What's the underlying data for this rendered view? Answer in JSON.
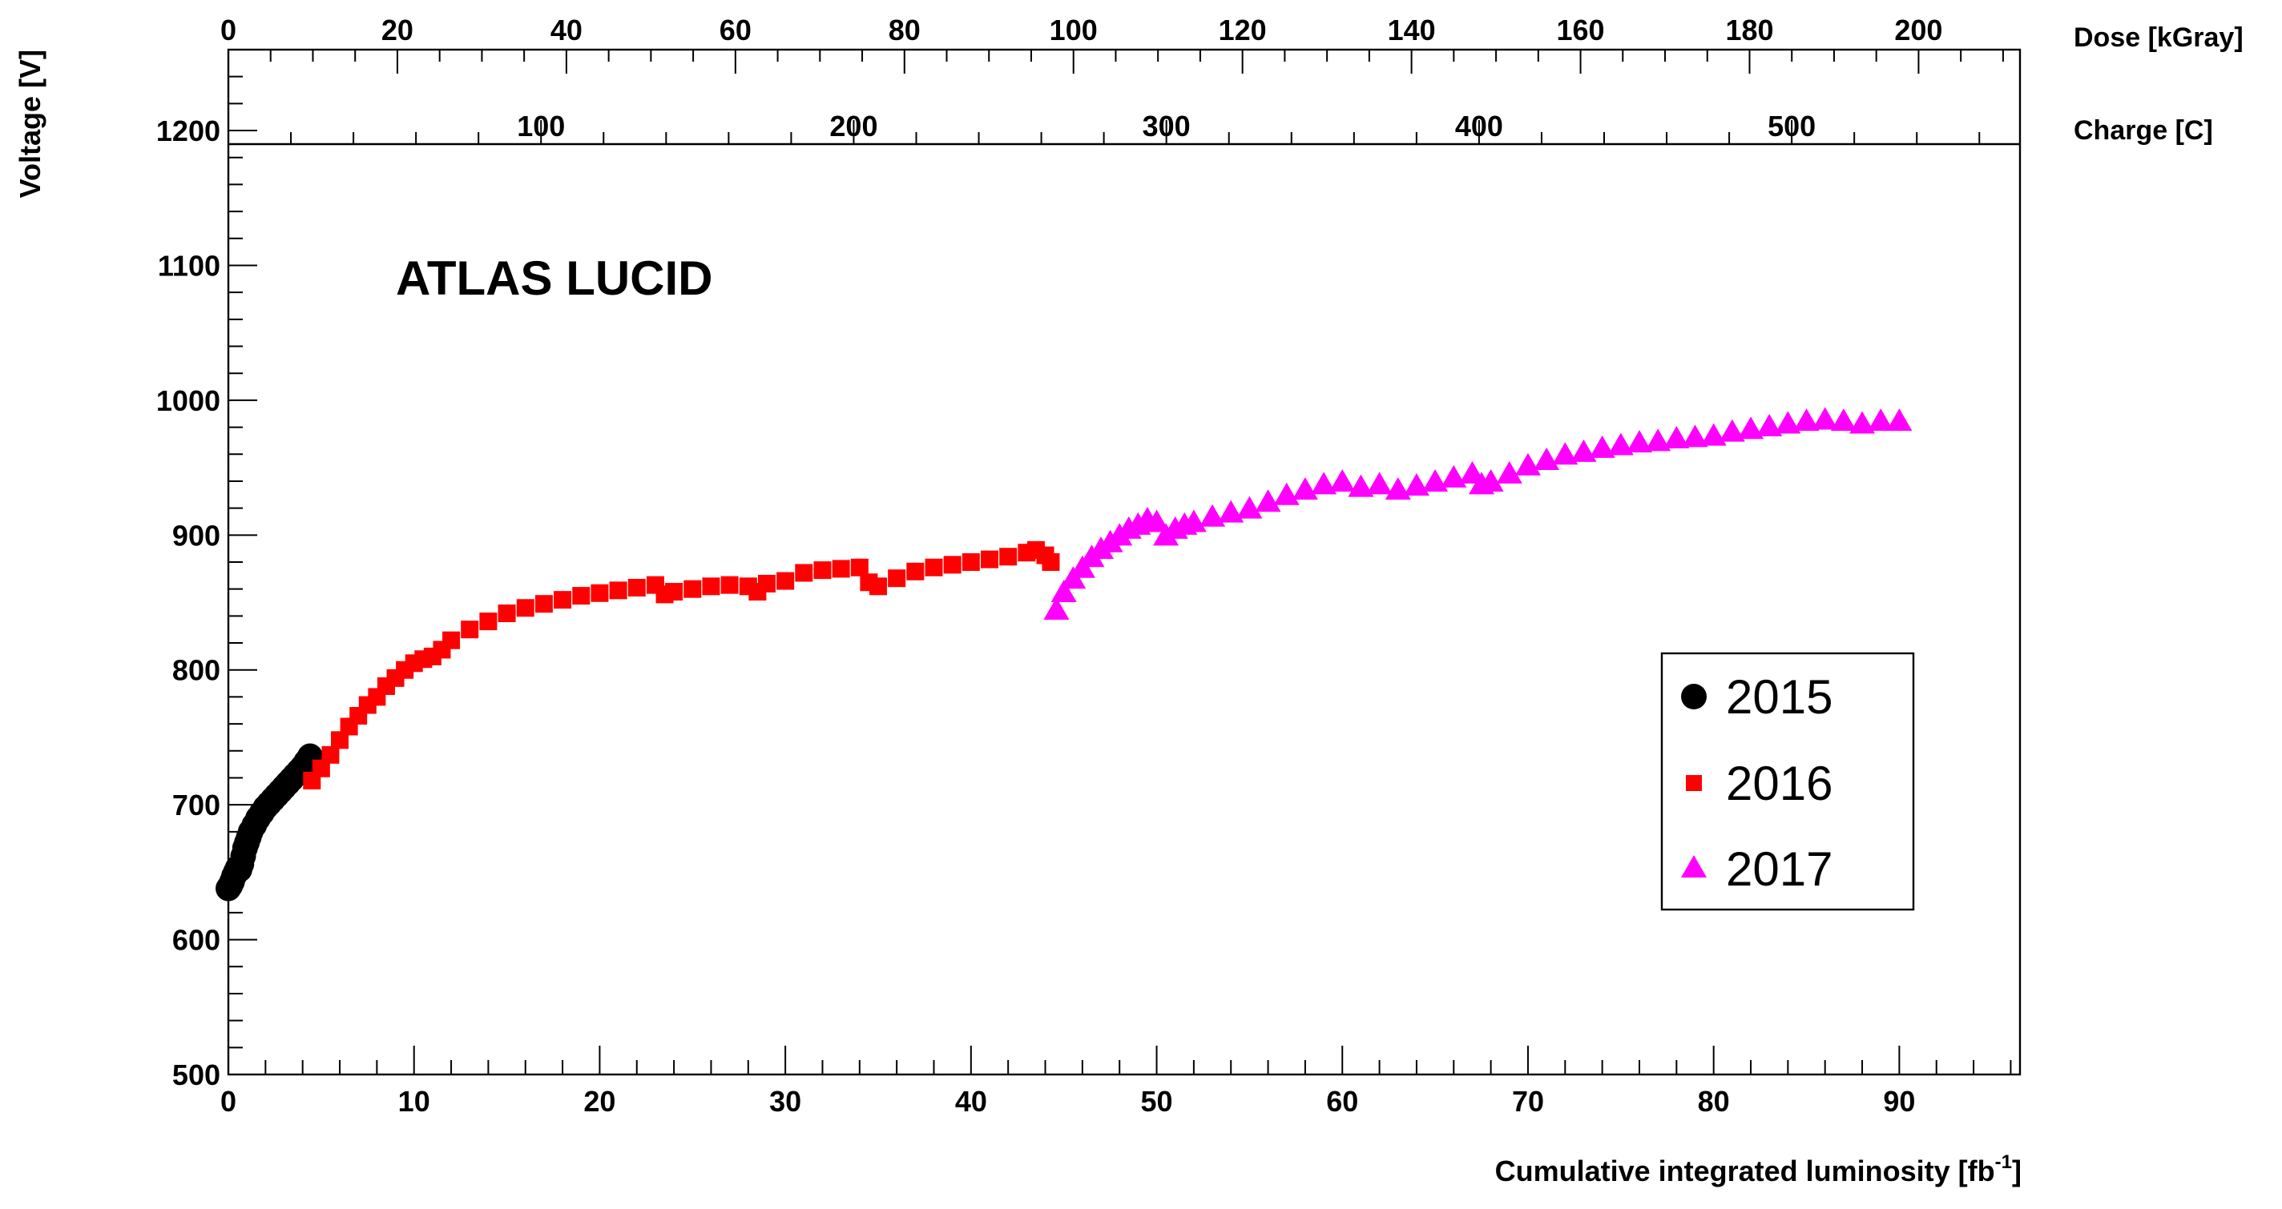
{
  "chart_data": {
    "type": "scatter",
    "title": "ATLAS LUCID",
    "xlabel": "Cumulative integrated luminosity [fb",
    "xlabel_sup": "-1",
    "xlabel_close": "]",
    "ylabel": "Voltage [V]",
    "xlim": [
      0,
      96.5
    ],
    "ylim": [
      500,
      1260
    ],
    "x_ticks": [
      0,
      10,
      20,
      30,
      40,
      50,
      60,
      70,
      80,
      90
    ],
    "y_ticks": [
      500,
      600,
      700,
      800,
      900,
      1000,
      1100,
      1200
    ],
    "grid": false,
    "legend_position": "bottom-right",
    "secondary_axes": [
      {
        "label": "Dose [kGray]",
        "ticks": [
          0,
          20,
          40,
          60,
          80,
          100,
          120,
          140,
          160,
          180,
          200
        ],
        "range": [
          0,
          212
        ]
      },
      {
        "label": "Charge [C]",
        "ticks": [
          100,
          200,
          300,
          400,
          500
        ],
        "range": [
          0,
          573
        ]
      }
    ],
    "series": [
      {
        "name": "2015",
        "marker": "circle",
        "color": "#000000",
        "x": [
          0.0,
          0.1,
          0.2,
          0.3,
          0.4,
          0.5,
          0.6,
          0.7,
          0.8,
          0.9,
          1.0,
          1.1,
          1.2,
          1.4,
          1.6,
          1.8,
          2.0,
          2.2,
          2.4,
          2.6,
          2.8,
          3.0,
          3.2,
          3.4,
          3.6,
          3.8,
          4.0,
          4.2,
          4.4
        ],
        "y": [
          638,
          640,
          643,
          647,
          650,
          653,
          652,
          656,
          662,
          668,
          672,
          676,
          680,
          685,
          690,
          694,
          698,
          701,
          704,
          707,
          710,
          713,
          716,
          719,
          722,
          725,
          728,
          732,
          736
        ]
      },
      {
        "name": "2016",
        "marker": "square",
        "color": "#ff0000",
        "x": [
          4.5,
          5.0,
          5.5,
          6.0,
          6.5,
          7.0,
          7.5,
          8.0,
          8.5,
          9.0,
          9.5,
          10.0,
          10.5,
          11.0,
          11.5,
          12.0,
          13.0,
          14.0,
          15.0,
          16.0,
          17.0,
          18.0,
          19.0,
          20.0,
          21.0,
          22.0,
          23.0,
          23.5,
          24.0,
          25.0,
          26.0,
          27.0,
          28.0,
          28.5,
          29.0,
          30.0,
          31.0,
          32.0,
          33.0,
          34.0,
          34.5,
          35.0,
          36.0,
          37.0,
          38.0,
          39.0,
          40.0,
          41.0,
          42.0,
          43.0,
          43.5,
          44.0,
          44.3
        ],
        "y": [
          718,
          727,
          737,
          748,
          758,
          766,
          774,
          780,
          788,
          794,
          800,
          805,
          808,
          810,
          815,
          822,
          830,
          836,
          842,
          846,
          849,
          852,
          855,
          857,
          859,
          861,
          863,
          856,
          858,
          860,
          862,
          863,
          862,
          858,
          864,
          866,
          872,
          874,
          875,
          876,
          865,
          862,
          868,
          873,
          876,
          878,
          880,
          882,
          884,
          887,
          889,
          885,
          880
        ]
      },
      {
        "name": "2017",
        "marker": "triangle",
        "color": "#ff00ff",
        "x": [
          44.6,
          45.0,
          45.5,
          46.0,
          46.5,
          47.0,
          47.5,
          48.0,
          48.5,
          49.0,
          49.5,
          50.0,
          50.5,
          51.0,
          51.5,
          52.0,
          53.0,
          54.0,
          55.0,
          56.0,
          57.0,
          58.0,
          59.0,
          60.0,
          61.0,
          62.0,
          63.0,
          64.0,
          65.0,
          66.0,
          67.0,
          67.5,
          68.0,
          69.0,
          70.0,
          71.0,
          72.0,
          73.0,
          74.0,
          75.0,
          76.0,
          77.0,
          78.0,
          79.0,
          80.0,
          81.0,
          82.0,
          83.0,
          84.0,
          85.0,
          86.0,
          87.0,
          88.0,
          89.0,
          90.0
        ],
        "y": [
          845,
          858,
          868,
          876,
          884,
          890,
          895,
          900,
          905,
          908,
          912,
          910,
          900,
          905,
          908,
          910,
          914,
          917,
          920,
          925,
          930,
          934,
          938,
          940,
          936,
          938,
          934,
          937,
          940,
          943,
          946,
          938,
          940,
          946,
          952,
          956,
          960,
          962,
          965,
          967,
          969,
          970,
          972,
          973,
          974,
          977,
          979,
          981,
          983,
          985,
          986,
          985,
          983,
          985,
          985
        ]
      }
    ]
  }
}
